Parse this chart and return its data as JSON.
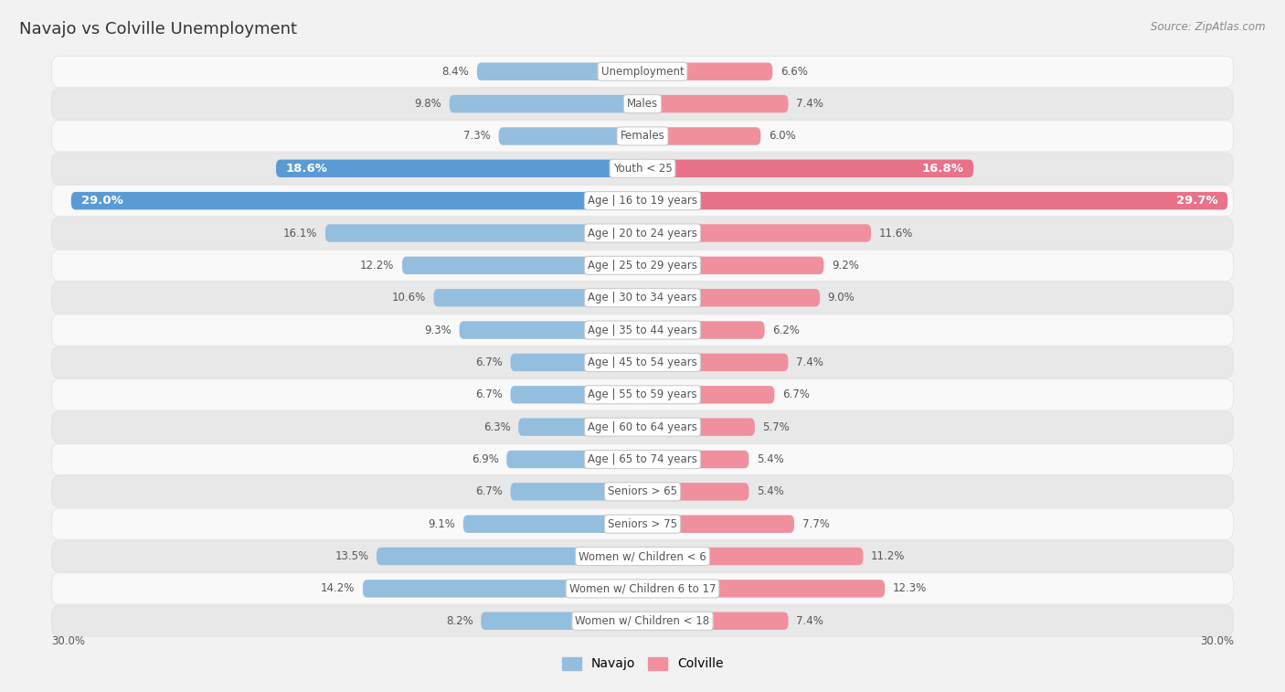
{
  "title": "Navajo vs Colville Unemployment",
  "source": "Source: ZipAtlas.com",
  "categories": [
    "Unemployment",
    "Males",
    "Females",
    "Youth < 25",
    "Age | 16 to 19 years",
    "Age | 20 to 24 years",
    "Age | 25 to 29 years",
    "Age | 30 to 34 years",
    "Age | 35 to 44 years",
    "Age | 45 to 54 years",
    "Age | 55 to 59 years",
    "Age | 60 to 64 years",
    "Age | 65 to 74 years",
    "Seniors > 65",
    "Seniors > 75",
    "Women w/ Children < 6",
    "Women w/ Children 6 to 17",
    "Women w/ Children < 18"
  ],
  "navajo": [
    8.4,
    9.8,
    7.3,
    18.6,
    29.0,
    16.1,
    12.2,
    10.6,
    9.3,
    6.7,
    6.7,
    6.3,
    6.9,
    6.7,
    9.1,
    13.5,
    14.2,
    8.2
  ],
  "colville": [
    6.6,
    7.4,
    6.0,
    16.8,
    29.7,
    11.6,
    9.2,
    9.0,
    6.2,
    7.4,
    6.7,
    5.7,
    5.4,
    5.4,
    7.7,
    11.2,
    12.3,
    7.4
  ],
  "navajo_color": "#94bede",
  "colville_color": "#f0909e",
  "navajo_highlight_color": "#5b9bd5",
  "colville_highlight_color": "#e8728a",
  "highlight_rows": [
    3,
    4
  ],
  "background_color": "#f2f2f2",
  "row_bg_even": "#f9f9f9",
  "row_bg_odd": "#e8e8e8",
  "row_border_color": "#e0e0e0",
  "max_value": 30.0,
  "axis_label_left": "30.0%",
  "axis_label_right": "30.0%",
  "legend_navajo": "Navajo",
  "legend_colville": "Colville",
  "label_color_normal": "#555555",
  "label_color_highlight": "#ffffff",
  "center_label_bg": "#ffffff",
  "center_label_color": "#555555"
}
